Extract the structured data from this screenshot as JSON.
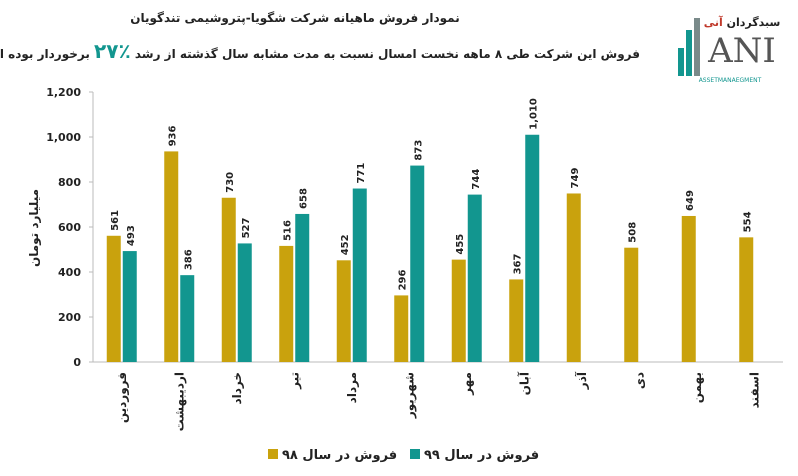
{
  "chart_data": {
    "type": "bar",
    "title": "نمودار فروش ماهیانه شرکت شگویا-پتروشیمی تندگویان",
    "subtitle": [
      "فروش این شرکت طی ۸ ماهه نخست امسال نسبت به مدت مشابه سال گذشته از رشد",
      "٪۲۷",
      "برخوردار بوده است."
    ],
    "y_label": "میلیارد تومان",
    "categories": [
      "فروردین",
      "اردیبهشت",
      "خرداد",
      "تیر",
      "مرداد",
      "شهریور",
      "مهر",
      "آبان",
      "آذر",
      "دی",
      "بهمن",
      "اسفند"
    ],
    "series": [
      {
        "name": "فروش در سال ۹۸",
        "color": "#c9a20d",
        "values": [
          561,
          936,
          730,
          516,
          452,
          296,
          455,
          367,
          749,
          508,
          649,
          554
        ]
      },
      {
        "name": "فروش در سال ۹۹",
        "color": "#12968f",
        "values": [
          493,
          386,
          527,
          658,
          771,
          873,
          744,
          1010,
          null,
          null,
          null,
          null
        ],
        "value_labels": [
          "493",
          "386",
          "527",
          "658",
          "771",
          "873",
          "744",
          "1,010",
          null,
          null,
          null,
          null
        ]
      }
    ],
    "ylim": [
      0,
      1200
    ],
    "yticks": [
      0,
      200,
      400,
      600,
      800,
      {
        "value": 1000,
        "label": "1,000"
      },
      {
        "value": 1200,
        "label": "1,200"
      }
    ],
    "grid": false
  },
  "logo": {
    "persian": "سبدگردان",
    "persian_accent": "آنی",
    "brand": "ANI",
    "english": "ASSETMANAEGMENT"
  }
}
